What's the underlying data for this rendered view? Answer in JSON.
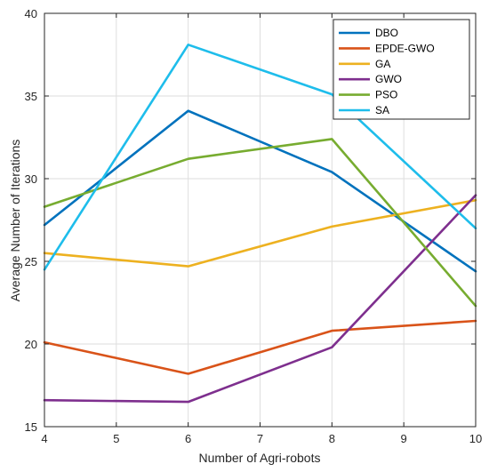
{
  "chart_data": {
    "type": "line",
    "title": "",
    "xlabel": "Number of Agri-robots",
    "ylabel": "Average Number of Iterations",
    "xlim": [
      4,
      10
    ],
    "ylim": [
      15,
      40
    ],
    "xticks": [
      4,
      5,
      6,
      7,
      8,
      9,
      10
    ],
    "yticks": [
      15,
      20,
      25,
      30,
      35,
      40
    ],
    "xtick_labels": [
      "4",
      "5",
      "6",
      "7",
      "8",
      "9",
      "10"
    ],
    "ytick_labels": [
      "15",
      "20",
      "25",
      "30",
      "35",
      "40"
    ],
    "grid": true,
    "legend_position": "top-right",
    "x": [
      4,
      6,
      8,
      10
    ],
    "series": [
      {
        "name": "DBO",
        "color": "#0072bd",
        "values": [
          27.2,
          34.1,
          30.4,
          24.4
        ]
      },
      {
        "name": "EPDE-GWO",
        "color": "#d95319",
        "values": [
          20.1,
          18.2,
          20.8,
          21.4
        ]
      },
      {
        "name": "GA",
        "color": "#edb120",
        "values": [
          25.5,
          24.7,
          27.1,
          28.7
        ]
      },
      {
        "name": "GWO",
        "color": "#7e2f8e",
        "values": [
          16.6,
          16.5,
          19.8,
          29.0
        ]
      },
      {
        "name": "PSO",
        "color": "#77ac30",
        "values": [
          28.3,
          31.2,
          32.4,
          22.3
        ]
      },
      {
        "name": "SA",
        "color": "#1ebdeb",
        "values": [
          24.5,
          38.1,
          35.1,
          27.0
        ]
      }
    ]
  }
}
